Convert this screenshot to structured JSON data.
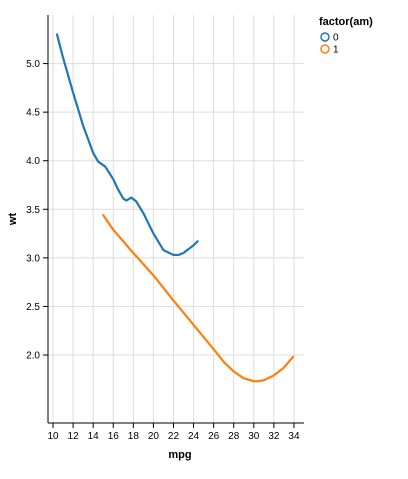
{
  "chart_data": {
    "type": "line",
    "title": "",
    "xlabel": "mpg",
    "ylabel": "wt",
    "xlim": [
      9.5,
      35
    ],
    "ylim": [
      1.3,
      5.5
    ],
    "grid": true,
    "legend_position": "top-right",
    "legend_title": "factor(am)",
    "x_ticks": [
      10,
      12,
      14,
      16,
      18,
      20,
      22,
      24,
      26,
      28,
      30,
      32,
      34
    ],
    "y_ticks": [
      2.0,
      2.5,
      3.0,
      3.5,
      4.0,
      4.5,
      5.0
    ],
    "series": [
      {
        "name": "0",
        "color": "#1f77b4",
        "x": [
          10.4,
          11.0,
          12.0,
          13.0,
          14.0,
          14.5,
          15.2,
          16.0,
          16.5,
          17.0,
          17.3,
          17.8,
          18.3,
          19.0,
          20.0,
          21.0,
          22.0,
          22.5,
          23.0,
          23.5,
          24.0,
          24.4
        ],
        "y": [
          5.3,
          5.06,
          4.7,
          4.36,
          4.08,
          3.99,
          3.94,
          3.81,
          3.7,
          3.61,
          3.59,
          3.62,
          3.58,
          3.46,
          3.25,
          3.08,
          3.03,
          3.03,
          3.05,
          3.09,
          3.13,
          3.17
        ]
      },
      {
        "name": "1",
        "color": "#ff7f0e",
        "x": [
          15.0,
          16.0,
          18.0,
          20.0,
          22.0,
          24.0,
          26.0,
          27.0,
          28.0,
          29.0,
          30.0,
          30.4,
          31.0,
          32.0,
          33.0,
          33.9
        ],
        "y": [
          3.44,
          3.29,
          3.05,
          2.82,
          2.56,
          2.31,
          2.06,
          1.93,
          1.83,
          1.76,
          1.73,
          1.73,
          1.74,
          1.79,
          1.87,
          1.98
        ]
      }
    ]
  }
}
